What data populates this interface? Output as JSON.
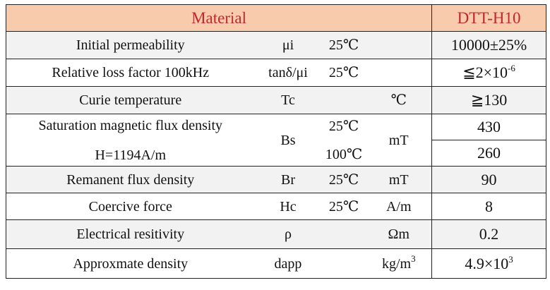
{
  "header": {
    "material_label": "Material",
    "grade_label": "DTT-H10"
  },
  "rows": [
    {
      "property": "Initial permeability",
      "symbol": "μi",
      "temp": "25℃",
      "unit": "",
      "value": "10000±25%"
    },
    {
      "property": "Relative loss factor 100kHz",
      "symbol": "tanδ/μi",
      "temp": "25℃",
      "unit": "",
      "value_main": "≦2×10",
      "value_exp": "-6"
    },
    {
      "property": "Curie temperature",
      "symbol": "Tc",
      "temp": "",
      "unit": "℃",
      "value": "≧130"
    },
    {
      "property_line1": "Saturation magnetic flux density",
      "property_line2": "H=1194A/m",
      "symbol": "Bs",
      "temp1": "25℃",
      "temp2": "100℃",
      "unit": "mT",
      "value1": "430",
      "value2": "260"
    },
    {
      "property": "Remanent flux density",
      "symbol": "Br",
      "temp": "25℃",
      "unit": "mT",
      "value": "90"
    },
    {
      "property": "Coercive force",
      "symbol": "Hc",
      "temp": "25℃",
      "unit": "A/m",
      "value": "8"
    },
    {
      "property": "Electrical resitivity",
      "symbol": "ρ",
      "temp": "",
      "unit": "Ωm",
      "value": "0.2"
    },
    {
      "property": "Approxmate density",
      "symbol": "dapp",
      "temp": "",
      "unit_main": "kg/m",
      "unit_exp": "3",
      "value_main": "4.9×10",
      "value_exp": "3"
    }
  ]
}
